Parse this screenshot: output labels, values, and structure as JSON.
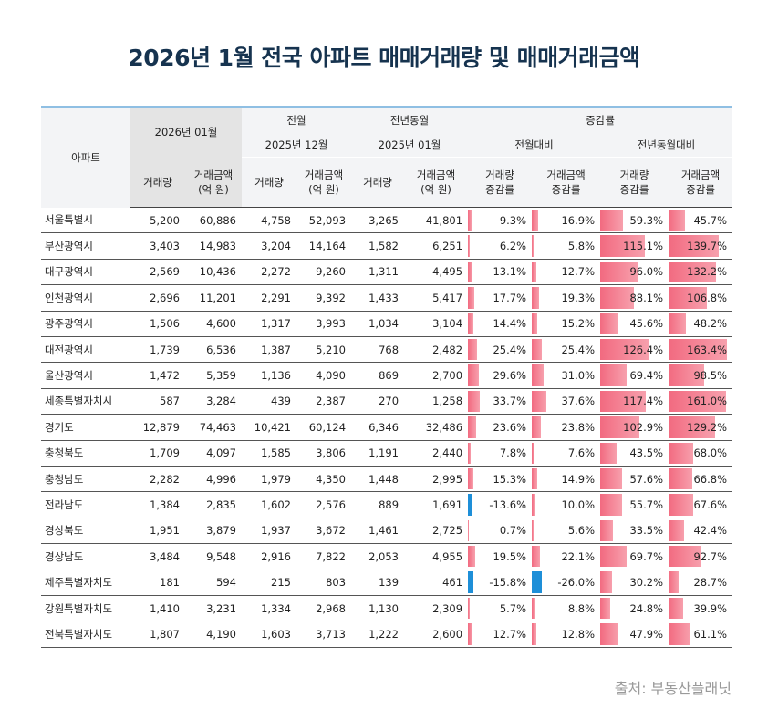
{
  "header": {
    "title": "2026년 1월 전국 아파트 매매거래량 및 매매거래금액"
  },
  "table": {
    "head": {
      "apt": "아파트",
      "current": "2026년 01월",
      "prev_month": "전월",
      "prev_year": "전년동월",
      "change": "증감률",
      "prev_month_date": "2025년 12월",
      "prev_year_date": "2025년 01월",
      "mom": "전월대비",
      "yoy": "전년동월대비",
      "columns": [
        "거래량",
        "거래금액\n(억 원)",
        "거래량",
        "거래금액\n(억 원)",
        "거래량",
        "거래금액\n(억 원)",
        "거래량\n증감률",
        "거래금액\n증감률",
        "거래량\n증감률",
        "거래금액\n증감률"
      ]
    },
    "rows": [
      [
        "서울특별시",
        "5,200",
        "60,886",
        "4,758",
        "52,093",
        "3,265",
        "41,801",
        "9.3%",
        "16.9%",
        "59.3%",
        "45.7%"
      ],
      [
        "부산광역시",
        "3,403",
        "14,983",
        "3,204",
        "14,164",
        "1,582",
        "6,251",
        "6.2%",
        "5.8%",
        "115.1%",
        "139.7%"
      ],
      [
        "대구광역시",
        "2,569",
        "10,436",
        "2,272",
        "9,260",
        "1,311",
        "4,495",
        "13.1%",
        "12.7%",
        "96.0%",
        "132.2%"
      ],
      [
        "인천광역시",
        "2,696",
        "11,201",
        "2,291",
        "9,392",
        "1,433",
        "5,417",
        "17.7%",
        "19.3%",
        "88.1%",
        "106.8%"
      ],
      [
        "광주광역시",
        "1,506",
        "4,600",
        "1,317",
        "3,993",
        "1,034",
        "3,104",
        "14.4%",
        "15.2%",
        "45.6%",
        "48.2%"
      ],
      [
        "대전광역시",
        "1,739",
        "6,536",
        "1,387",
        "5,210",
        "768",
        "2,482",
        "25.4%",
        "25.4%",
        "126.4%",
        "163.4%"
      ],
      [
        "울산광역시",
        "1,472",
        "5,359",
        "1,136",
        "4,090",
        "869",
        "2,700",
        "29.6%",
        "31.0%",
        "69.4%",
        "98.5%"
      ],
      [
        "세종특별자치시",
        "587",
        "3,284",
        "439",
        "2,387",
        "270",
        "1,258",
        "33.7%",
        "37.6%",
        "117.4%",
        "161.0%"
      ],
      [
        "경기도",
        "12,879",
        "74,463",
        "10,421",
        "60,124",
        "6,346",
        "32,486",
        "23.6%",
        "23.8%",
        "102.9%",
        "129.2%"
      ],
      [
        "충청북도",
        "1,709",
        "4,097",
        "1,585",
        "3,806",
        "1,191",
        "2,440",
        "7.8%",
        "7.6%",
        "43.5%",
        "68.0%"
      ],
      [
        "충청남도",
        "2,282",
        "4,996",
        "1,979",
        "4,350",
        "1,448",
        "2,995",
        "15.3%",
        "14.9%",
        "57.6%",
        "66.8%"
      ],
      [
        "전라남도",
        "1,384",
        "2,835",
        "1,602",
        "2,576",
        "889",
        "1,691",
        "-13.6%",
        "10.0%",
        "55.7%",
        "67.6%"
      ],
      [
        "경상북도",
        "1,951",
        "3,879",
        "1,937",
        "3,672",
        "1,461",
        "2,725",
        "0.7%",
        "5.6%",
        "33.5%",
        "42.4%"
      ],
      [
        "경상남도",
        "3,484",
        "9,548",
        "2,916",
        "7,822",
        "2,053",
        "4,955",
        "19.5%",
        "22.1%",
        "69.7%",
        "92.7%"
      ],
      [
        "제주특별자치도",
        "181",
        "594",
        "215",
        "803",
        "139",
        "461",
        "-15.8%",
        "-26.0%",
        "30.2%",
        "28.7%"
      ],
      [
        "강원특별자치도",
        "1,410",
        "3,231",
        "1,334",
        "2,968",
        "1,130",
        "2,309",
        "5.7%",
        "8.8%",
        "24.8%",
        "39.9%"
      ],
      [
        "전북특별자치도",
        "1,807",
        "4,190",
        "1,603",
        "3,713",
        "1,222",
        "2,600",
        "12.7%",
        "12.8%",
        "47.9%",
        "61.1%"
      ]
    ]
  },
  "footer": {
    "source": "출처: 부동산플래닛"
  }
}
